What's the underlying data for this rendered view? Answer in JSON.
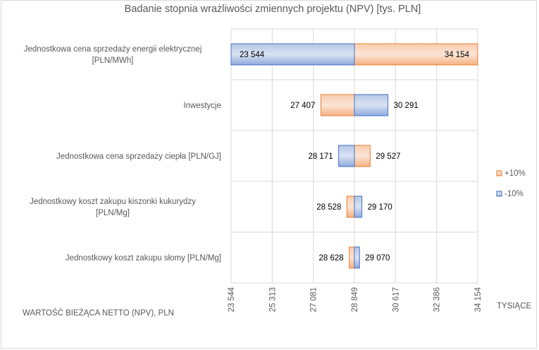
{
  "chart_data": {
    "type": "bar",
    "title": "Badanie stopnia wrażliwości zmiennych projektu (NPV) [tys. PLN]",
    "xlabel": "WARTOŚĆ BIEŻĄCA NETTO (NPV),  PLN",
    "unit_label": "TYSIĄCE",
    "base_value": 28849,
    "xlim": [
      23544,
      34154
    ],
    "x_ticks": [
      "23 544",
      "25 313",
      "27 081",
      "28 849",
      "30 617",
      "32 386",
      "34 154"
    ],
    "x_tick_values": [
      23544,
      25313,
      27081,
      28849,
      30617,
      32386,
      34154
    ],
    "grid": true,
    "legend_position": "right",
    "categories": [
      [
        "Jednostkowa cena sprzedaży energii elektrycznej",
        "[PLN/MWh]"
      ],
      [
        "Inwestycje"
      ],
      [
        "Jednostkowa cena sprzedaży ciepła [PLN/GJ]"
      ],
      [
        "Jednostkowy koszt zakupu kiszonki kukurydzy",
        "[PLN/Mg]"
      ],
      [
        "Jednostkowy koszt zakupu słomy [PLN/Mg]"
      ]
    ],
    "series": [
      {
        "name": "+10%",
        "color": "#f4b183",
        "stroke": "#ed7d31",
        "values": [
          34154,
          27407,
          29527,
          28528,
          28628
        ],
        "labels": [
          "34 154",
          "27 407",
          "29 527",
          "28 528",
          "28 628"
        ]
      },
      {
        "name": "-10%",
        "color": "#adc4ef",
        "stroke": "#4472c4",
        "values": [
          23544,
          30291,
          28171,
          29170,
          29070
        ],
        "labels": [
          "23 544",
          "30 291",
          "28 171",
          "29 170",
          "29 070"
        ]
      }
    ]
  }
}
